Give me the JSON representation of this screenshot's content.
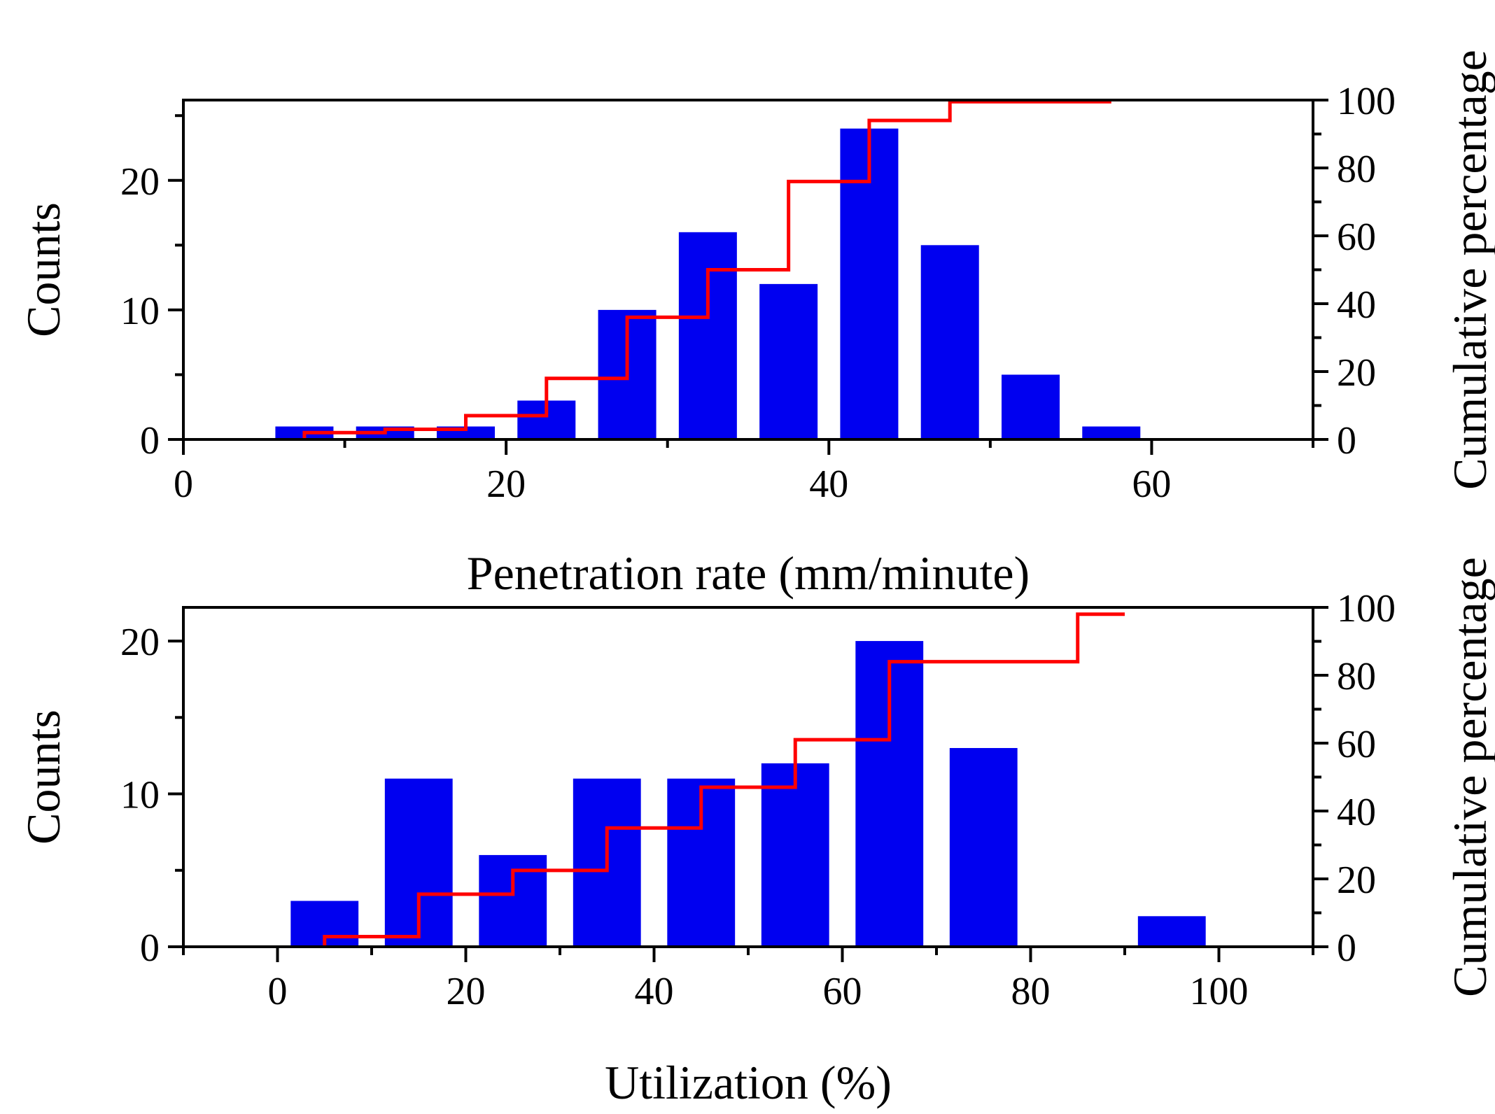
{
  "colors": {
    "bars": "#0000f0",
    "cumulative_line": "#ff0000",
    "axes": "#000000"
  },
  "chart_data": [
    {
      "type": "bar",
      "overlay": "cumulative percentage step line",
      "xlabel": "Penetration rate (mm/minute)",
      "ylabel": "Counts",
      "y2label": "Cumulative percentage",
      "xlim": [
        0,
        70
      ],
      "ylim": [
        0,
        26.2
      ],
      "y2lim": [
        0,
        100
      ],
      "xticks": [
        0,
        20,
        40,
        60
      ],
      "yticks": [
        0,
        10,
        20
      ],
      "y2ticks": [
        0,
        20,
        40,
        60,
        80,
        100
      ],
      "bar_width": 3.6,
      "bars": [
        {
          "x": 7.5,
          "count": 1
        },
        {
          "x": 12.5,
          "count": 1
        },
        {
          "x": 17.5,
          "count": 1
        },
        {
          "x": 22.5,
          "count": 3
        },
        {
          "x": 27.5,
          "count": 10
        },
        {
          "x": 32.5,
          "count": 16
        },
        {
          "x": 37.5,
          "count": 12
        },
        {
          "x": 42.5,
          "count": 24
        },
        {
          "x": 47.5,
          "count": 15
        },
        {
          "x": 52.5,
          "count": 5
        },
        {
          "x": 57.5,
          "count": 1
        }
      ],
      "cumulative": {
        "x": [
          7.5,
          12.5,
          17.5,
          22.5,
          27.5,
          32.5,
          37.5,
          42.5,
          47.5,
          52.5
        ],
        "percent": [
          2,
          3,
          7,
          18,
          36,
          50,
          76,
          94,
          99.5,
          99.5
        ]
      },
      "grid": false
    },
    {
      "type": "bar",
      "overlay": "cumulative percentage step line",
      "xlabel": "Utilization (%)",
      "ylabel": "Counts",
      "y2label": "Cumulative percentage",
      "xlim": [
        -10,
        110
      ],
      "ylim": [
        0,
        22.2
      ],
      "y2lim": [
        0,
        100
      ],
      "xticks": [
        0,
        20,
        40,
        60,
        80,
        100
      ],
      "yticks": [
        0,
        10,
        20
      ],
      "y2ticks": [
        0,
        20,
        40,
        60,
        80,
        100
      ],
      "bar_width": 7.2,
      "bars": [
        {
          "x": 5,
          "count": 3
        },
        {
          "x": 15,
          "count": 11
        },
        {
          "x": 25,
          "count": 6
        },
        {
          "x": 35,
          "count": 11
        },
        {
          "x": 45,
          "count": 11
        },
        {
          "x": 55,
          "count": 12
        },
        {
          "x": 65,
          "count": 20
        },
        {
          "x": 75,
          "count": 13
        },
        {
          "x": 95,
          "count": 2
        }
      ],
      "cumulative": {
        "x": [
          5,
          15,
          25,
          35,
          45,
          55,
          65,
          85
        ],
        "percent": [
          3,
          15.5,
          22.5,
          35,
          47,
          61,
          84,
          98
        ]
      },
      "grid": false
    }
  ]
}
